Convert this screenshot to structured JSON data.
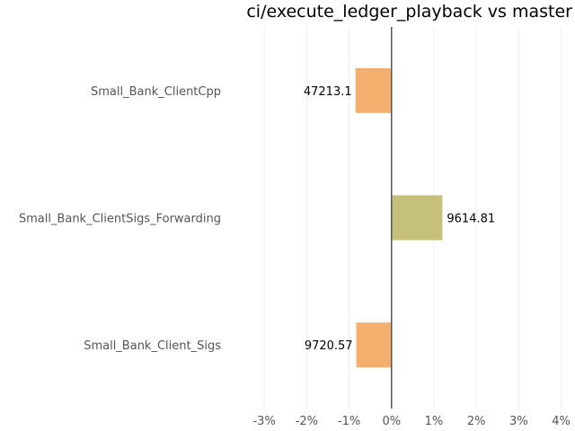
{
  "chart_data": {
    "type": "bar",
    "orientation": "horizontal",
    "title": "ci/execute_ledger_playback vs master",
    "xlabel": "",
    "ylabel": "",
    "xlim": [
      -3.3,
      4.2
    ],
    "grid": true,
    "legend": "none",
    "x_ticks": [
      -3,
      -2,
      -1,
      0,
      1,
      2,
      3,
      4
    ],
    "x_tick_labels": [
      "-3%",
      "-2%",
      "-1%",
      "0%",
      "1%",
      "2%",
      "3%",
      "4%"
    ],
    "categories": [
      "Small_Bank_ClientCpp",
      "Small_Bank_ClientSigs_Forwarding",
      "Small_Bank_Client_Sigs"
    ],
    "values": [
      -0.85,
      1.2,
      -0.83
    ],
    "value_labels": [
      "47213.1",
      "9614.81",
      "9720.57"
    ],
    "colors": [
      "#f4ae6e",
      "#c5c07b",
      "#f4ae6e"
    ]
  }
}
